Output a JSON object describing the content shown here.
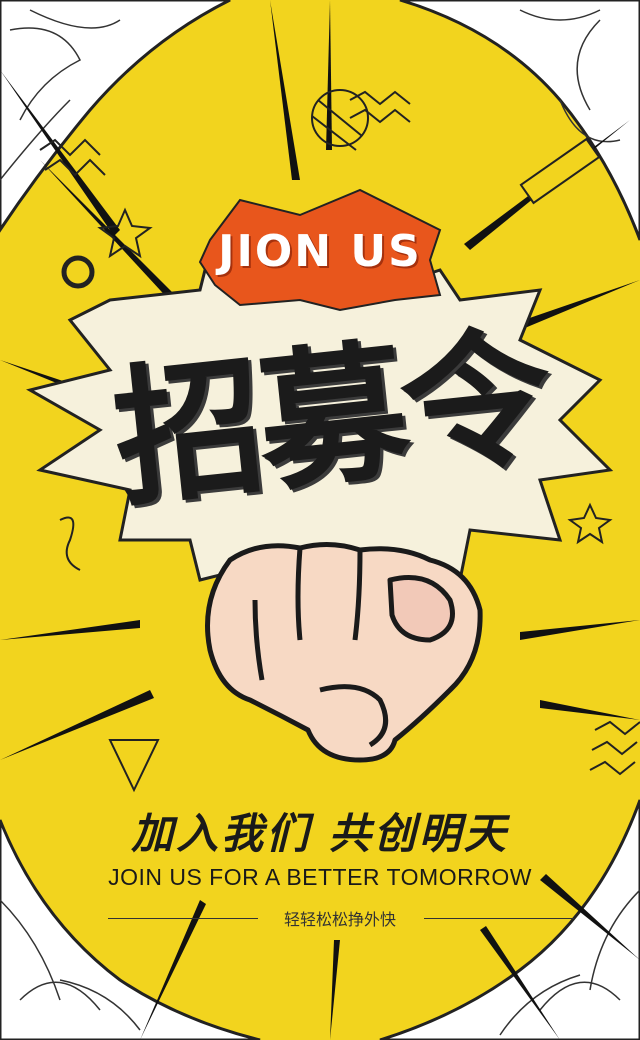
{
  "badge": {
    "text": "JION US"
  },
  "title": {
    "text": "招募令"
  },
  "slogan": {
    "chinese": "加入我们  共创明天",
    "english": "JOIN US FOR A BETTER TOMORROW"
  },
  "subtitle": {
    "text": "轻轻松松挣外快"
  },
  "colors": {
    "background": "#f2d41e",
    "burst": "#f6f1dc",
    "badge": "#e8561c",
    "ink": "#1b1b1b",
    "skin": "#f7d9c4"
  }
}
